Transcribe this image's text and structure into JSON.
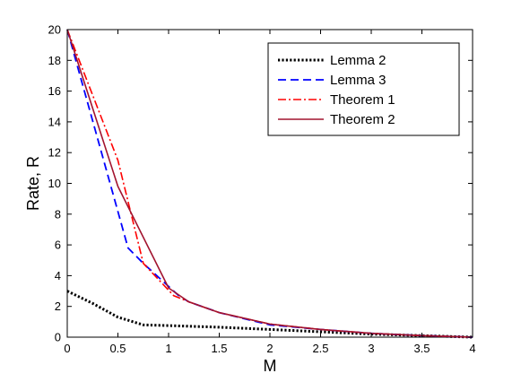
{
  "chart_data": {
    "type": "line",
    "xlabel": "M",
    "ylabel": "Rate, R",
    "xlim": [
      0,
      4
    ],
    "ylim": [
      0,
      20
    ],
    "xticks": [
      0,
      0.5,
      1,
      1.5,
      2,
      2.5,
      3,
      3.5,
      4
    ],
    "yticks": [
      0,
      2,
      4,
      6,
      8,
      10,
      12,
      14,
      16,
      18,
      20
    ],
    "xtick_labels": [
      "0",
      "0.5",
      "1",
      "1.5",
      "2",
      "2.5",
      "3",
      "3.5",
      "4"
    ],
    "ytick_labels": [
      "0",
      "2",
      "4",
      "6",
      "8",
      "10",
      "12",
      "14",
      "16",
      "18",
      "20"
    ],
    "grid": false,
    "legend_position": "top-right",
    "series": [
      {
        "name": "Lemma 2",
        "color": "#000000",
        "style": "dotted",
        "x": [
          0,
          0.25,
          0.5,
          0.75,
          1,
          1.5,
          2,
          2.5,
          3,
          3.5,
          4
        ],
        "y": [
          3,
          2.2,
          1.3,
          0.8,
          0.75,
          0.65,
          0.5,
          0.35,
          0.2,
          0.1,
          0
        ]
      },
      {
        "name": "Lemma 3",
        "color": "#0000ff",
        "style": "dashed",
        "x": [
          0,
          0.6,
          0.75,
          1.1,
          1.2,
          1.5,
          2,
          2.5,
          3,
          3.5,
          4
        ],
        "y": [
          20,
          5.8,
          4.8,
          2.7,
          2.3,
          1.6,
          0.8,
          0.5,
          0.25,
          0.1,
          0
        ]
      },
      {
        "name": "Theorem 1",
        "color": "#ff0000",
        "style": "dashdot",
        "x": [
          0,
          0.5,
          0.75,
          1.05,
          1.2,
          1.5,
          2,
          2.5,
          3,
          3.5,
          4
        ],
        "y": [
          20,
          11.5,
          4.8,
          2.7,
          2.3,
          1.6,
          0.85,
          0.5,
          0.25,
          0.1,
          0
        ]
      },
      {
        "name": "Theorem 2",
        "color": "#a2142f",
        "style": "solid",
        "x": [
          0,
          0.5,
          1,
          1.2,
          1.5,
          2,
          2.5,
          3,
          3.5,
          4
        ],
        "y": [
          20,
          9.8,
          3.2,
          2.3,
          1.6,
          0.85,
          0.5,
          0.25,
          0.1,
          0
        ]
      }
    ]
  }
}
